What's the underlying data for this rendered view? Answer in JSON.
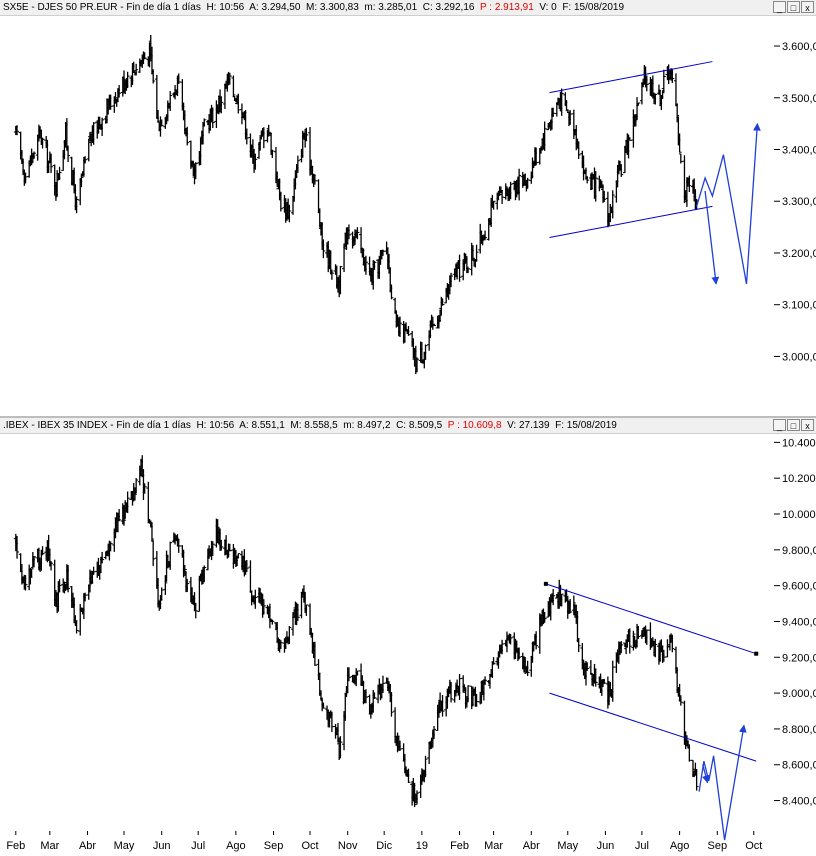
{
  "panels": [
    {
      "id": "sx5e",
      "header": {
        "label": "SX5E - DJES 50 PR.EUR - Fin de día 1 días",
        "h": "H: 10:56",
        "a": "A: 3.294,50",
        "m": "M: 3.300,83",
        "mn": "m: 3.285,01",
        "c": "C: 3.292,16",
        "p": "P : 2.913,91",
        "v": "V: 0",
        "f": "F: 15/08/2019"
      }
    },
    {
      "id": "ibex",
      "header": {
        "label": ".IBEX - IBEX 35 INDEX - Fin de día 1 días",
        "h": "H: 10:56",
        "a": "A: 8.551,1",
        "m": "M: 8.558,5",
        "mn": "m: 8.497,2",
        "c": "C: 8.509,5",
        "p": "P : 10.609,8",
        "v": "V: 27.139",
        "f": "F: 15/08/2019"
      }
    }
  ],
  "window_buttons": {
    "minimize": "_",
    "maximize": "□",
    "close": "x"
  },
  "colors": {
    "price": "#000000",
    "drawing": "#0000cc",
    "projection": "#1f3fd8",
    "p_value": "#e00000"
  },
  "chart_data": [
    {
      "type": "ohlc",
      "symbol": "SX5E",
      "y_ticks": [
        "3.600,00",
        "3.500,00",
        "3.400,00",
        "3.300,00",
        "3.200,00",
        "3.100,00",
        "3.000,00"
      ],
      "y_tick_values": [
        3600,
        3500,
        3400,
        3300,
        3200,
        3100,
        3000
      ],
      "ylim": [
        2910,
        3660
      ],
      "close_path": [
        [
          "2018-02-01",
          3430
        ],
        [
          "2018-02-09",
          3350
        ],
        [
          "2018-02-21",
          3430
        ],
        [
          "2018-03-06",
          3330
        ],
        [
          "2018-03-14",
          3430
        ],
        [
          "2018-03-23",
          3290
        ],
        [
          "2018-04-03",
          3420
        ],
        [
          "2018-04-17",
          3480
        ],
        [
          "2018-05-03",
          3540
        ],
        [
          "2018-05-14",
          3570
        ],
        [
          "2018-05-22",
          3590
        ],
        [
          "2018-05-29",
          3450
        ],
        [
          "2018-06-07",
          3490
        ],
        [
          "2018-06-14",
          3530
        ],
        [
          "2018-06-22",
          3400
        ],
        [
          "2018-06-28",
          3360
        ],
        [
          "2018-07-06",
          3440
        ],
        [
          "2018-07-16",
          3480
        ],
        [
          "2018-07-26",
          3530
        ],
        [
          "2018-08-06",
          3480
        ],
        [
          "2018-08-15",
          3380
        ],
        [
          "2018-08-27",
          3450
        ],
        [
          "2018-09-07",
          3300
        ],
        [
          "2018-09-14",
          3280
        ],
        [
          "2018-09-26",
          3430
        ],
        [
          "2018-10-04",
          3350
        ],
        [
          "2018-10-11",
          3220
        ],
        [
          "2018-10-25",
          3140
        ],
        [
          "2018-11-01",
          3250
        ],
        [
          "2018-11-08",
          3230
        ],
        [
          "2018-11-20",
          3150
        ],
        [
          "2018-12-03",
          3210
        ],
        [
          "2018-12-11",
          3050
        ],
        [
          "2018-12-20",
          3040
        ],
        [
          "2018-12-27",
          2990
        ],
        [
          "2019-01-02",
          3010
        ],
        [
          "2019-01-14",
          3080
        ],
        [
          "2019-01-28",
          3160
        ],
        [
          "2019-02-14",
          3200
        ],
        [
          "2019-03-01",
          3290
        ],
        [
          "2019-03-15",
          3330
        ],
        [
          "2019-03-28",
          3340
        ],
        [
          "2019-04-10",
          3420
        ],
        [
          "2019-04-24",
          3500
        ],
        [
          "2019-05-06",
          3450
        ],
        [
          "2019-05-15",
          3350
        ],
        [
          "2019-05-30",
          3310
        ],
        [
          "2019-06-04",
          3270
        ],
        [
          "2019-06-12",
          3350
        ],
        [
          "2019-06-20",
          3420
        ],
        [
          "2019-07-04",
          3540
        ],
        [
          "2019-07-15",
          3500
        ],
        [
          "2019-07-24",
          3560
        ],
        [
          "2019-07-30",
          3460
        ],
        [
          "2019-08-05",
          3300
        ],
        [
          "2019-08-08",
          3350
        ],
        [
          "2019-08-15",
          3290
        ]
      ],
      "channel_upper": [
        [
          "2019-04-16",
          3510
        ],
        [
          "2019-08-28",
          3570
        ]
      ],
      "channel_lower": [
        [
          "2019-04-16",
          3230
        ],
        [
          "2019-08-28",
          3290
        ]
      ],
      "projection_a": [
        [
          "2019-08-15",
          3290
        ],
        [
          "2019-08-22",
          3345
        ],
        [
          "2019-08-28",
          3310
        ],
        [
          "2019-09-06",
          3390
        ],
        [
          "2019-09-25",
          3140
        ],
        [
          "2019-10-04",
          3450
        ]
      ],
      "projection_b": [
        [
          "2019-08-22",
          3320
        ],
        [
          "2019-08-31",
          3140
        ]
      ]
    },
    {
      "type": "ohlc",
      "symbol": ".IBEX",
      "y_ticks": [
        "10.400,0",
        "10.200,0",
        "10.000,0",
        "9.800,0",
        "9.600,0",
        "9.400,0",
        "9.200,0",
        "9.000,0",
        "8.800,0",
        "8.600,0",
        "8.400,0"
      ],
      "y_tick_values": [
        10400,
        10200,
        10000,
        9800,
        9600,
        9400,
        9200,
        9000,
        8800,
        8600,
        8400
      ],
      "ylim": [
        8230,
        10430
      ],
      "x_ticks": [
        "Feb",
        "Mar",
        "Abr",
        "May",
        "Jun",
        "Jul",
        "Ago",
        "Sep",
        "Oct",
        "Nov",
        "Dic",
        "19",
        "Feb",
        "Mar",
        "Abr",
        "May",
        "Jun",
        "Jul",
        "Ago",
        "Sep",
        "Oct"
      ],
      "x_tick_dates": [
        "2018-02-01",
        "2018-03-01",
        "2018-04-01",
        "2018-05-01",
        "2018-06-01",
        "2018-07-01",
        "2018-08-01",
        "2018-09-01",
        "2018-10-01",
        "2018-11-01",
        "2018-12-01",
        "2019-01-01",
        "2019-02-01",
        "2019-03-01",
        "2019-04-01",
        "2019-05-01",
        "2019-06-01",
        "2019-07-01",
        "2019-08-01",
        "2019-09-01",
        "2019-10-01"
      ],
      "close_path": [
        [
          "2018-02-01",
          9850
        ],
        [
          "2018-02-08",
          9600
        ],
        [
          "2018-02-16",
          9750
        ],
        [
          "2018-02-27",
          9800
        ],
        [
          "2018-03-06",
          9500
        ],
        [
          "2018-03-15",
          9650
        ],
        [
          "2018-03-23",
          9380
        ],
        [
          "2018-04-03",
          9600
        ],
        [
          "2018-04-16",
          9800
        ],
        [
          "2018-04-26",
          9950
        ],
        [
          "2018-05-09",
          10100
        ],
        [
          "2018-05-15",
          10250
        ],
        [
          "2018-05-25",
          9800
        ],
        [
          "2018-05-30",
          9450
        ],
        [
          "2018-06-06",
          9750
        ],
        [
          "2018-06-14",
          9900
        ],
        [
          "2018-06-22",
          9600
        ],
        [
          "2018-06-28",
          9450
        ],
        [
          "2018-07-06",
          9700
        ],
        [
          "2018-07-16",
          9900
        ],
        [
          "2018-07-25",
          9800
        ],
        [
          "2018-08-06",
          9750
        ],
        [
          "2018-08-15",
          9550
        ],
        [
          "2018-08-27",
          9450
        ],
        [
          "2018-09-07",
          9250
        ],
        [
          "2018-09-14",
          9350
        ],
        [
          "2018-09-26",
          9550
        ],
        [
          "2018-10-05",
          9200
        ],
        [
          "2018-10-11",
          8950
        ],
        [
          "2018-10-25",
          8700
        ],
        [
          "2018-11-01",
          9050
        ],
        [
          "2018-11-09",
          9100
        ],
        [
          "2018-11-20",
          8900
        ],
        [
          "2018-12-03",
          9100
        ],
        [
          "2018-12-11",
          8750
        ],
        [
          "2018-12-20",
          8550
        ],
        [
          "2018-12-27",
          8400
        ],
        [
          "2019-01-03",
          8600
        ],
        [
          "2019-01-14",
          8900
        ],
        [
          "2019-01-28",
          9050
        ],
        [
          "2019-02-14",
          8950
        ],
        [
          "2019-03-01",
          9150
        ],
        [
          "2019-03-15",
          9300
        ],
        [
          "2019-03-28",
          9150
        ],
        [
          "2019-04-10",
          9400
        ],
        [
          "2019-04-24",
          9550
        ],
        [
          "2019-05-06",
          9450
        ],
        [
          "2019-05-15",
          9150
        ],
        [
          "2019-05-30",
          9050
        ],
        [
          "2019-06-04",
          9000
        ],
        [
          "2019-06-12",
          9250
        ],
        [
          "2019-06-20",
          9300
        ],
        [
          "2019-07-04",
          9350
        ],
        [
          "2019-07-15",
          9200
        ],
        [
          "2019-07-24",
          9300
        ],
        [
          "2019-07-30",
          9050
        ],
        [
          "2019-08-05",
          8750
        ],
        [
          "2019-08-08",
          8650
        ],
        [
          "2019-08-15",
          8510
        ]
      ],
      "channel_upper": [
        [
          "2019-04-13",
          9610
        ],
        [
          "2019-10-03",
          9220
        ]
      ],
      "channel_lower": [
        [
          "2019-04-16",
          9000
        ],
        [
          "2019-10-03",
          8620
        ]
      ],
      "projection_a": [
        [
          "2019-08-17",
          8450
        ],
        [
          "2019-08-21",
          8620
        ],
        [
          "2019-08-25",
          8510
        ],
        [
          "2019-08-29",
          8650
        ],
        [
          "2019-09-07",
          8180
        ],
        [
          "2019-09-23",
          8820
        ]
      ],
      "projection_b": [
        [
          "2019-08-20",
          8600
        ],
        [
          "2019-08-24",
          8500
        ]
      ]
    }
  ]
}
